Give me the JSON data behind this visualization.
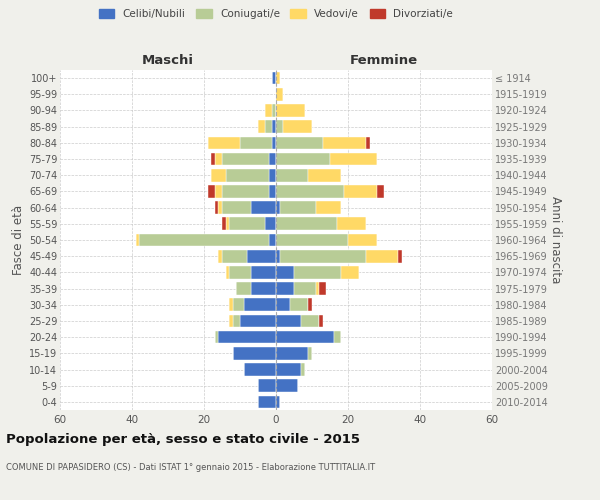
{
  "age_groups": [
    "0-4",
    "5-9",
    "10-14",
    "15-19",
    "20-24",
    "25-29",
    "30-34",
    "35-39",
    "40-44",
    "45-49",
    "50-54",
    "55-59",
    "60-64",
    "65-69",
    "70-74",
    "75-79",
    "80-84",
    "85-89",
    "90-94",
    "95-99",
    "100+"
  ],
  "birth_years": [
    "2010-2014",
    "2005-2009",
    "2000-2004",
    "1995-1999",
    "1990-1994",
    "1985-1989",
    "1980-1984",
    "1975-1979",
    "1970-1974",
    "1965-1969",
    "1960-1964",
    "1955-1959",
    "1950-1954",
    "1945-1949",
    "1940-1944",
    "1935-1939",
    "1930-1934",
    "1925-1929",
    "1920-1924",
    "1915-1919",
    "≤ 1914"
  ],
  "male_celibe": [
    5,
    5,
    9,
    12,
    16,
    10,
    9,
    7,
    7,
    8,
    2,
    3,
    7,
    2,
    2,
    2,
    1,
    1,
    0,
    0,
    1
  ],
  "male_coniugato": [
    0,
    0,
    0,
    0,
    1,
    2,
    3,
    4,
    6,
    7,
    36,
    10,
    8,
    13,
    12,
    13,
    9,
    2,
    1,
    0,
    0
  ],
  "male_vedovo": [
    0,
    0,
    0,
    0,
    0,
    1,
    1,
    0,
    1,
    1,
    1,
    1,
    1,
    2,
    4,
    2,
    9,
    2,
    2,
    0,
    0
  ],
  "male_divorziato": [
    0,
    0,
    0,
    0,
    0,
    0,
    0,
    0,
    0,
    0,
    0,
    1,
    1,
    2,
    0,
    1,
    0,
    0,
    0,
    0,
    0
  ],
  "female_nubile": [
    1,
    6,
    7,
    9,
    16,
    7,
    4,
    5,
    5,
    1,
    0,
    0,
    1,
    0,
    0,
    0,
    0,
    0,
    0,
    0,
    0
  ],
  "female_coniugata": [
    0,
    0,
    1,
    1,
    2,
    5,
    5,
    6,
    13,
    24,
    20,
    17,
    10,
    19,
    9,
    15,
    13,
    2,
    0,
    0,
    0
  ],
  "female_vedova": [
    0,
    0,
    0,
    0,
    0,
    0,
    0,
    1,
    5,
    9,
    8,
    8,
    7,
    9,
    9,
    13,
    12,
    8,
    8,
    2,
    1
  ],
  "female_divorziata": [
    0,
    0,
    0,
    0,
    0,
    1,
    1,
    2,
    0,
    1,
    0,
    0,
    0,
    2,
    0,
    0,
    1,
    0,
    0,
    0,
    0
  ],
  "colors": {
    "celibe": "#4472c4",
    "coniugato": "#b8cc96",
    "vedovo": "#ffd966",
    "divorziato": "#c0392b"
  },
  "xlim": 60,
  "title": "Popolazione per età, sesso e stato civile - 2015",
  "subtitle": "COMUNE DI PAPASIDERO (CS) - Dati ISTAT 1° gennaio 2015 - Elaborazione TUTTITALIA.IT",
  "ylabel_left": "Fasce di età",
  "ylabel_right": "Anni di nascita",
  "xlabel_left": "Maschi",
  "xlabel_right": "Femmine",
  "bg_color": "#f0f0eb",
  "plot_bg_color": "#ffffff"
}
